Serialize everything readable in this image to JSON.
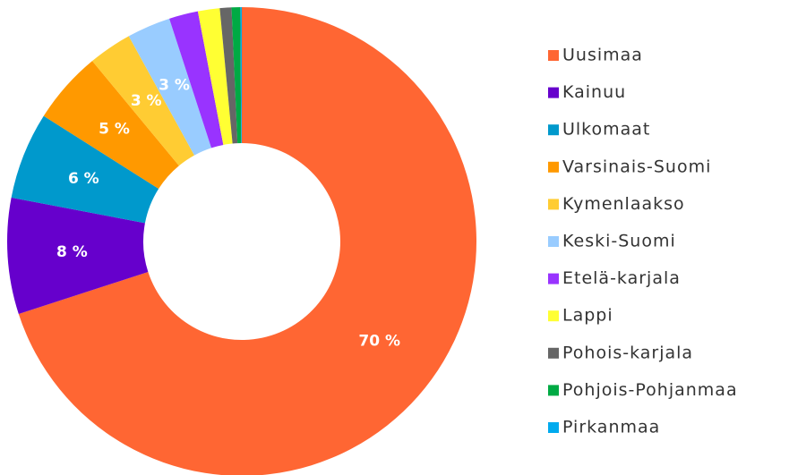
{
  "chart_data": {
    "type": "donut",
    "categories": [
      "Uusimaa",
      "Kainuu",
      "Ulkomaat",
      "Varsinais-Suomi",
      "Kymenlaakso",
      "Keski-Suomi",
      "Etelä-karjala",
      "Lappi",
      "Pohois-karjala",
      "Pohjois-Pohjanmaa",
      "Pirkanmaa"
    ],
    "values": [
      70,
      8,
      6,
      5,
      3,
      3,
      2,
      1.5,
      0.8,
      0.6,
      0.1
    ],
    "value_labels": [
      "70 %",
      "8 %",
      "6 %",
      "5 %",
      "3 %",
      "3 %",
      null,
      null,
      null,
      null,
      null
    ],
    "colors": [
      "#ff6633",
      "#6600cc",
      "#0099cc",
      "#ff9900",
      "#ffcc33",
      "#99ccff",
      "#9933ff",
      "#ffff33",
      "#666666",
      "#00aa44",
      "#00aaee"
    ],
    "legend": "right"
  }
}
